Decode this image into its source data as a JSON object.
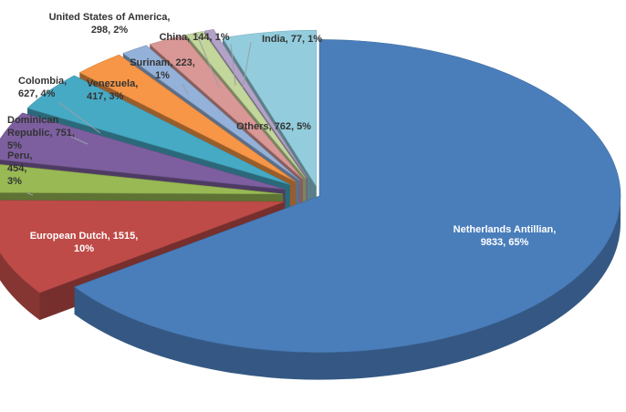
{
  "chart_data": {
    "type": "pie",
    "title": "",
    "style": "3d-exploded",
    "legend": "none",
    "slices": [
      {
        "label": "Netherlands Antillian",
        "value": 9833,
        "percent": 65,
        "color": "#4a7ebb",
        "text_lines": [
          "Netherlands Antillian,",
          "9833, 65%"
        ],
        "text_color": "#ffffff"
      },
      {
        "label": "European Dutch",
        "value": 1515,
        "percent": 10,
        "color": "#be4b48",
        "text_lines": [
          "European Dutch, 1515,",
          "10%"
        ],
        "text_color": "#ffffff"
      },
      {
        "label": "Peru",
        "value": 454,
        "percent": 3,
        "color": "#98b954",
        "text_lines": [
          "Peru,",
          "454,",
          "3%"
        ],
        "text_color": "#333333"
      },
      {
        "label": "Dominican Republic",
        "value": 751,
        "percent": 5,
        "color": "#7d5fa0",
        "text_lines": [
          "Dominican",
          "Republic, 751,",
          "5%"
        ],
        "text_color": "#333333"
      },
      {
        "label": "Colombia",
        "value": 627,
        "percent": 4,
        "color": "#46aac5",
        "text_lines": [
          "Colombia,",
          "627, 4%"
        ],
        "text_color": "#333333"
      },
      {
        "label": "Venezuela",
        "value": 417,
        "percent": 3,
        "color": "#f79646",
        "text_lines": [
          "Venezuela,",
          "417, 3%"
        ],
        "text_color": "#333333"
      },
      {
        "label": "Surinam",
        "value": 223,
        "percent": 1,
        "color": "#94b1d9",
        "text_lines": [
          "Surinam, 223,",
          "1%"
        ],
        "text_color": "#333333"
      },
      {
        "label": "United States of America",
        "value": 298,
        "percent": 2,
        "color": "#d99795",
        "text_lines": [
          "United States of America,",
          "298, 2%"
        ],
        "text_color": "#333333"
      },
      {
        "label": "China",
        "value": 144,
        "percent": 1,
        "color": "#c3d69b",
        "text_lines": [
          "China, 144, 1%"
        ],
        "text_color": "#333333"
      },
      {
        "label": "India",
        "value": 77,
        "percent": 1,
        "color": "#b3a2c7",
        "text_lines": [
          "India, 77, 1%"
        ],
        "text_color": "#333333"
      },
      {
        "label": "Others",
        "value": 762,
        "percent": 5,
        "color": "#93cddd",
        "text_lines": [
          "Others, 762, 5%"
        ],
        "text_color": "#333333"
      }
    ]
  }
}
